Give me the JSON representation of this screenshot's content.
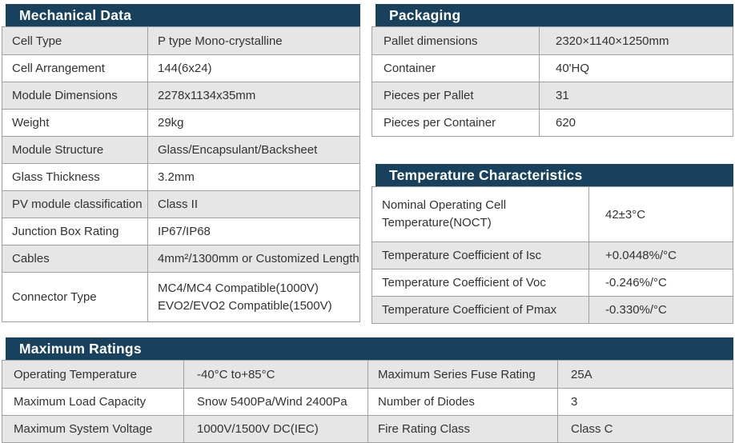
{
  "colors": {
    "header_bg": "#17415c",
    "header_text": "#ffffff",
    "row_alt_bg": "#e6e6e6",
    "row_bg": "#ffffff",
    "border": "#9f9f9f",
    "text": "#323232"
  },
  "sections": {
    "mechanical": {
      "title": "Mechanical Data",
      "rows": [
        {
          "label": "Cell Type",
          "value": "P type Mono-crystalline"
        },
        {
          "label": "Cell Arrangement",
          "value": "144(6x24)"
        },
        {
          "label": "Module Dimensions",
          "value": "2278x1134x35mm"
        },
        {
          "label": "Weight",
          "value": "29kg"
        },
        {
          "label": "Module Structure",
          "value": "Glass/Encapsulant/Backsheet"
        },
        {
          "label": "Glass Thickness",
          "value": "3.2mm"
        },
        {
          "label": "PV module classification",
          "value": "Class II"
        },
        {
          "label": "Junction Box Rating",
          "value": "IP67/IP68"
        },
        {
          "label": "Cables",
          "value": "4mm²/1300mm or Customized Length"
        },
        {
          "label": "Connector Type",
          "value": "MC4/MC4 Compatible(1000V)\nEVO2/EVO2 Compatible(1500V)"
        }
      ]
    },
    "packaging": {
      "title": "Packaging",
      "rows": [
        {
          "label": "Pallet dimensions",
          "value": "2320×1140×1250mm"
        },
        {
          "label": "Container",
          "value": "40'HQ"
        },
        {
          "label": "Pieces per Pallet",
          "value": "31"
        },
        {
          "label": "Pieces per Container",
          "value": "620"
        }
      ]
    },
    "temperature": {
      "title": "Temperature Characteristics",
      "rows": [
        {
          "label": "Nominal Operating Cell\nTemperature(NOCT)",
          "value": "42±3°C"
        },
        {
          "label": "Temperature Coefficient of Isc",
          "value": "+0.0448%/°C"
        },
        {
          "label": "Temperature Coefficient of Voc",
          "value": "-0.246%/°C"
        },
        {
          "label": "Temperature Coefficient of Pmax",
          "value": "-0.330%/°C"
        }
      ]
    },
    "maximum_ratings": {
      "title": "Maximum Ratings",
      "rows": [
        {
          "label": "Operating Temperature",
          "value": "-40°C to+85°C",
          "label2": "Maximum Series Fuse Rating",
          "value2": "25A"
        },
        {
          "label": "Maximum Load Capacity",
          "value": "Snow 5400Pa/Wind 2400Pa",
          "label2": "Number of Diodes",
          "value2": "3"
        },
        {
          "label": "Maximum System Voltage",
          "value": "1000V/1500V DC(IEC)",
          "label2": "Fire Rating Class",
          "value2": "Class C"
        }
      ]
    }
  }
}
